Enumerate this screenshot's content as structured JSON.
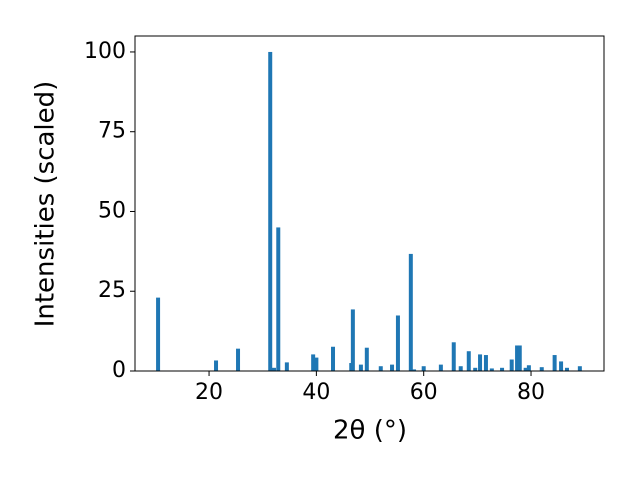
{
  "chart_data": {
    "type": "bar",
    "xlabel": "2θ (°)",
    "ylabel": "Intensities (scaled)",
    "x": [
      10.5,
      21.3,
      25.4,
      31.4,
      32.1,
      32.9,
      34.5,
      39.4,
      40.0,
      43.1,
      46.5,
      46.8,
      48.3,
      49.4,
      52.0,
      54.1,
      55.2,
      57.6,
      58.2,
      60.0,
      63.2,
      65.6,
      66.9,
      68.4,
      69.6,
      70.5,
      71.6,
      72.7,
      74.6,
      76.4,
      77.4,
      77.9,
      79.0,
      79.6,
      82.0,
      84.4,
      85.6,
      86.7,
      89.1
    ],
    "values": [
      23,
      3.3,
      7,
      100,
      1,
      45,
      2.7,
      5.2,
      4.2,
      7.6,
      2.5,
      19.3,
      2.0,
      7.3,
      1.5,
      2.0,
      17.4,
      36.7,
      0.5,
      1.5,
      2,
      9,
      1.5,
      6.2,
      1,
      5.2,
      5,
      0.8,
      1,
      3.6,
      8,
      8,
      1,
      1.8,
      1.2,
      5,
      3,
      1,
      1.5
    ],
    "color": "#1f77b4",
    "xlim": [
      6.2,
      93.6
    ],
    "xticks": [
      20,
      40,
      60,
      80
    ],
    "ylim": [
      0,
      105
    ],
    "yticks": [
      0,
      25,
      50,
      75,
      100
    ]
  }
}
